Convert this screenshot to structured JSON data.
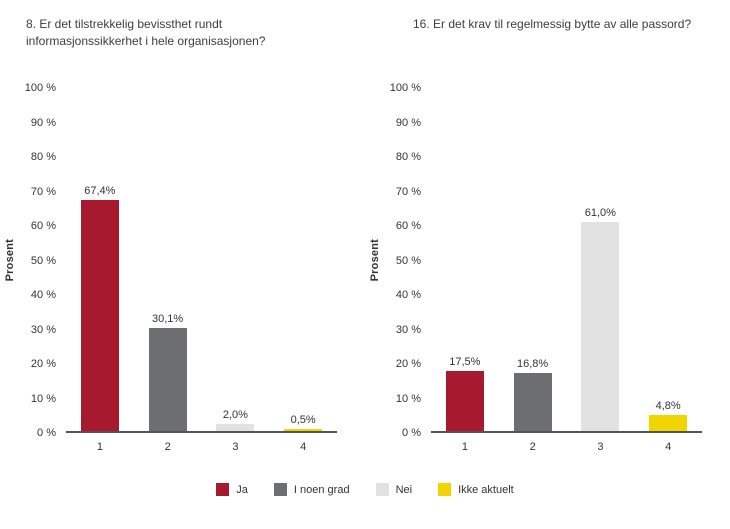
{
  "page": {
    "background": "#ffffff"
  },
  "chart_data": [
    {
      "type": "bar",
      "title": "8. Er det tilstrekkelig bevissthet rundt informasjonssikkerhet i hele organisasjonen?",
      "ylabel": "Prosent",
      "xlabel": "",
      "ylim": [
        0,
        100
      ],
      "grid": false,
      "categories": [
        "1",
        "2",
        "3",
        "4"
      ],
      "values": [
        67.4,
        30.1,
        2.0,
        0.5
      ],
      "value_labels": [
        "67,4%",
        "30,1%",
        "2,0%",
        "0,5%"
      ],
      "bar_colors": [
        "#A6192E",
        "#6D6E71",
        "#E2E2E2",
        "#F0D500"
      ],
      "yticks": [
        "100 %",
        "90 %",
        "80 %",
        "70 %",
        "60 %",
        "50 %",
        "40 %",
        "30 %",
        "20 %",
        "10 %",
        "0 %"
      ]
    },
    {
      "type": "bar",
      "title": "16. Er det krav til regelmessig bytte av alle passord?",
      "ylabel": "Prosent",
      "xlabel": "",
      "ylim": [
        0,
        100
      ],
      "grid": false,
      "categories": [
        "1",
        "2",
        "3",
        "4"
      ],
      "values": [
        17.5,
        16.8,
        61.0,
        4.8
      ],
      "value_labels": [
        "17,5%",
        "16,8%",
        "61,0%",
        "4,8%"
      ],
      "bar_colors": [
        "#A6192E",
        "#6D6E71",
        "#E2E2E2",
        "#F0D500"
      ],
      "yticks": [
        "100 %",
        "90 %",
        "80 %",
        "70 %",
        "60 %",
        "50 %",
        "40 %",
        "30 %",
        "20 %",
        "10 %",
        "0 %"
      ]
    }
  ],
  "legend": {
    "position": "bottom-center",
    "items": [
      {
        "label": "Ja",
        "color": "#A6192E"
      },
      {
        "label": "I noen grad",
        "color": "#6D6E71"
      },
      {
        "label": "Nei",
        "color": "#E2E2E2"
      },
      {
        "label": "Ikke aktuelt",
        "color": "#F0D500"
      }
    ]
  }
}
